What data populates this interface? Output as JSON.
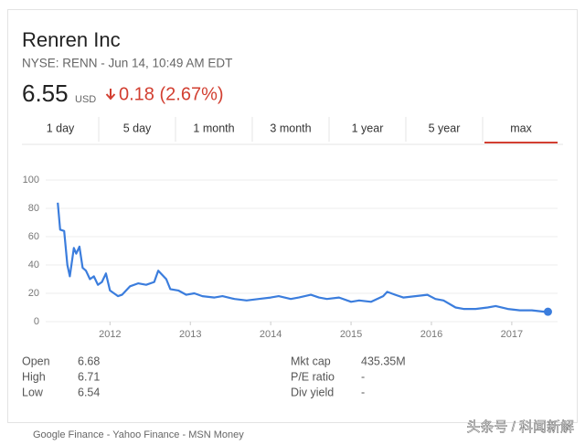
{
  "header": {
    "title": "Renren Inc",
    "subtitle": "NYSE: RENN - Jun 14, 10:49 AM EDT",
    "price": "6.55",
    "currency": "USD",
    "change": "0.18 (2.67%)"
  },
  "tabs": [
    "1 day",
    "5 day",
    "1 month",
    "3 month",
    "1 year",
    "5 year",
    "max"
  ],
  "chart_data": {
    "type": "line",
    "x": [
      2011.35,
      2011.38,
      2011.43,
      2011.47,
      2011.5,
      2011.55,
      2011.58,
      2011.62,
      2011.66,
      2011.7,
      2011.75,
      2011.8,
      2011.85,
      2011.9,
      2011.95,
      2012.0,
      2012.05,
      2012.1,
      2012.15,
      2012.25,
      2012.35,
      2012.45,
      2012.55,
      2012.6,
      2012.65,
      2012.7,
      2012.75,
      2012.85,
      2012.95,
      2013.05,
      2013.15,
      2013.3,
      2013.4,
      2013.55,
      2013.7,
      2013.85,
      2014.0,
      2014.1,
      2014.25,
      2014.35,
      2014.5,
      2014.6,
      2014.7,
      2014.85,
      2015.0,
      2015.1,
      2015.25,
      2015.4,
      2015.45,
      2015.55,
      2015.65,
      2015.8,
      2015.95,
      2016.05,
      2016.15,
      2016.3,
      2016.4,
      2016.55,
      2016.7,
      2016.8,
      2016.95,
      2017.1,
      2017.25,
      2017.4,
      2017.45
    ],
    "series": [
      {
        "color": "#3b7ddd",
        "values": [
          84,
          65,
          64,
          40,
          32,
          52,
          48,
          53,
          38,
          36,
          30,
          32,
          26,
          28,
          34,
          22,
          20,
          18,
          19,
          25,
          27,
          26,
          28,
          36,
          33,
          30,
          23,
          22,
          19,
          20,
          18,
          17,
          18,
          16,
          15,
          16,
          17,
          18,
          16,
          17,
          19,
          17,
          16,
          17,
          14,
          15,
          14,
          18,
          21,
          19,
          17,
          18,
          19,
          16,
          15,
          10,
          9,
          9,
          10,
          11,
          9,
          8,
          8,
          7,
          7
        ]
      }
    ],
    "xlim": [
      2011.2,
      2017.57
    ],
    "xticks": [
      2012,
      2013,
      2014,
      2015,
      2016,
      2017
    ],
    "ylim": [
      0,
      100
    ],
    "yticks": [
      0,
      20,
      40,
      60,
      80,
      100
    ],
    "grid": true
  },
  "stats": [
    [
      "Open",
      "6.68"
    ],
    [
      "High",
      "6.71"
    ],
    [
      "Low",
      "6.54"
    ],
    [
      "Mkt cap",
      "435.35M"
    ],
    [
      "P/E ratio",
      "-"
    ],
    [
      "Div yield",
      "-"
    ]
  ],
  "footer": "Google Finance - Yahoo Finance - MSN Money",
  "watermark": "头条号 / 科闻新解"
}
